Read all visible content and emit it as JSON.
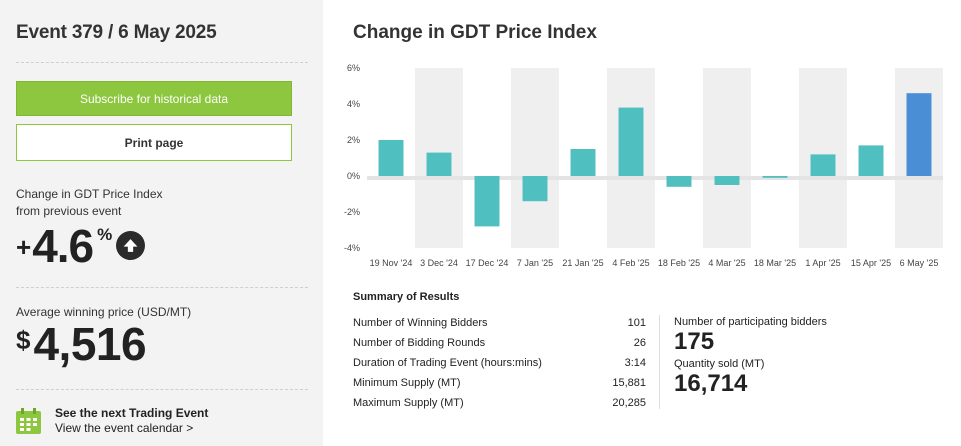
{
  "left": {
    "event_title": "Event 379 / 6 May 2025",
    "subscribe_label": "Subscribe for historical data",
    "print_label": "Print page",
    "change_label_line1": "Change in GDT Price Index",
    "change_label_line2": "from previous event",
    "change_sign": "+",
    "change_value": "4.6",
    "change_unit": "%",
    "avg_label": "Average winning price (USD/MT)",
    "price_currency": "$",
    "price_value": "4,516",
    "calendar_title": "See the next Trading Event",
    "calendar_link": "View the event calendar >"
  },
  "colors": {
    "accent_green": "#8dc63f",
    "bar_teal": "#4fbfbf",
    "bar_current": "#4a8fd6",
    "band_gray": "#efefef"
  },
  "chart_title": "Change in GDT Price Index",
  "chart_data": {
    "type": "bar",
    "categories": [
      "19 Nov '24",
      "3 Dec '24",
      "17 Dec '24",
      "7 Jan '25",
      "21 Jan '25",
      "4 Feb '25",
      "18 Feb '25",
      "4 Mar '25",
      "18 Mar '25",
      "1 Apr '25",
      "15 Apr '25",
      "6 May '25"
    ],
    "values": [
      2.0,
      1.3,
      -2.8,
      -1.4,
      1.5,
      3.8,
      -0.6,
      -0.5,
      -0.1,
      1.2,
      1.7,
      4.6
    ],
    "yticks": [
      "6%",
      "4%",
      "2%",
      "0%",
      "-2%",
      "-4%"
    ],
    "ylim": [
      -4,
      6
    ],
    "grid": false,
    "highlight_last": true
  },
  "summary": {
    "title": "Summary of Results",
    "rows": [
      {
        "label": "Number of Winning Bidders",
        "value": "101"
      },
      {
        "label": "Number of Bidding Rounds",
        "value": "26"
      },
      {
        "label": "Duration of Trading Event (hours:mins)",
        "value": "3:14"
      },
      {
        "label": "Minimum Supply (MT)",
        "value": "15,881"
      },
      {
        "label": "Maximum Supply (MT)",
        "value": "20,285"
      }
    ],
    "participating_label": "Number of participating bidders",
    "participating_value": "175",
    "quantity_label": "Quantity sold (MT)",
    "quantity_value": "16,714"
  }
}
